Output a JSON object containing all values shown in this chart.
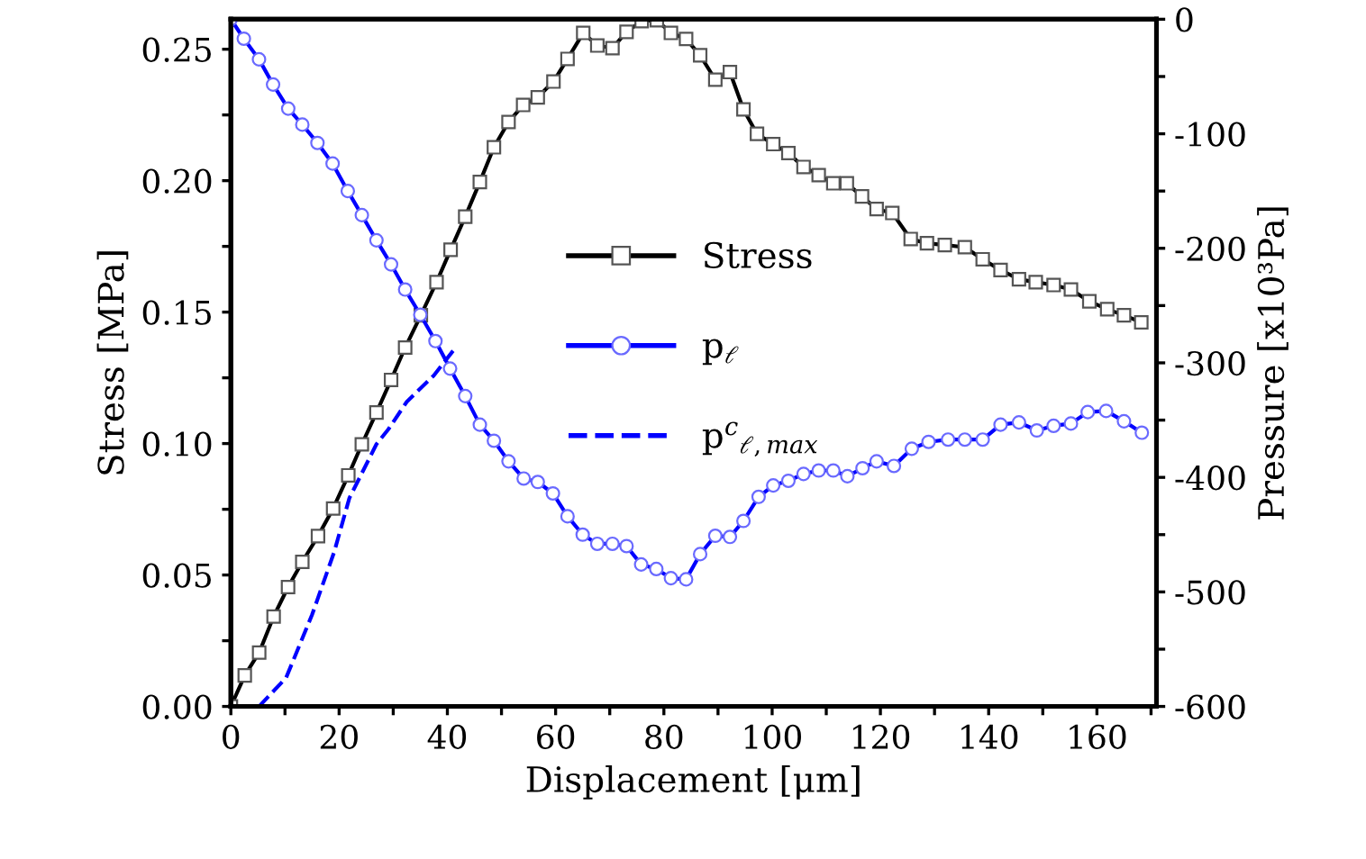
{
  "chart_data": {
    "type": "line",
    "xlabel": "Displacement [μm]",
    "ylabel": "Stress [MPa]",
    "y2label": "Pressure [x10³Pa]",
    "xlim": [
      0,
      171
    ],
    "ylim": [
      0,
      0.2614
    ],
    "y2lim": [
      -600,
      0
    ],
    "xticks": [
      0,
      {
        "value": 10,
        "label": null
      },
      20,
      {
        "value": 30,
        "label": null
      },
      40,
      {
        "value": 50,
        "label": null
      },
      60,
      {
        "value": 70,
        "label": null
      },
      80,
      {
        "value": 90,
        "label": null
      },
      100,
      {
        "value": 110,
        "label": null
      },
      120,
      {
        "value": 130,
        "label": null
      },
      140,
      {
        "value": 150,
        "label": null
      },
      160,
      {
        "value": 170,
        "label": null
      }
    ],
    "yticks": [
      {
        "value": 0,
        "label": "0.00"
      },
      {
        "value": 0.025,
        "label": null
      },
      {
        "value": 0.05,
        "label": "0.05"
      },
      {
        "value": 0.075,
        "label": null
      },
      {
        "value": 0.1,
        "label": "0.10"
      },
      {
        "value": 0.125,
        "label": null
      },
      {
        "value": 0.15,
        "label": "0.15"
      },
      {
        "value": 0.175,
        "label": null
      },
      {
        "value": 0.2,
        "label": "0.20"
      },
      {
        "value": 0.225,
        "label": null
      },
      {
        "value": 0.25,
        "label": "0.25"
      }
    ],
    "y2ticks": [
      -600,
      {
        "value": -550,
        "label": null
      },
      -500,
      {
        "value": -450,
        "label": null
      },
      -400,
      {
        "value": -350,
        "label": null
      },
      -300,
      {
        "value": -250,
        "label": null
      },
      -200,
      {
        "value": -150,
        "label": null
      },
      -100,
      {
        "value": -50,
        "label": null
      },
      0
    ],
    "grid": false,
    "legend": "center",
    "series": [
      {
        "name": "Stress",
        "color": "#000000",
        "marker": "square",
        "line_style": "solid",
        "x": [
          0,
          2.57,
          5.23,
          7.9,
          10.57,
          13.2,
          16.1,
          18.9,
          21.7,
          24.2,
          26.9,
          29.6,
          32.2,
          35.1,
          38,
          40.6,
          43.3,
          46,
          48.6,
          51.3,
          54,
          56.7,
          59.6,
          62.2,
          65.1,
          67.7,
          70.5,
          73.1,
          75.9,
          78.7,
          81.3,
          84.1,
          86.7,
          89.5,
          92.2,
          94.7,
          97.2,
          100.2,
          103,
          105.8,
          108.6,
          111.3,
          113.8,
          116.6,
          119.3,
          122.2,
          125.6,
          128.6,
          131.9,
          135.6,
          138.9,
          142.2,
          145.6,
          148.7,
          152,
          155.2,
          158.6,
          161.9,
          165,
          168.2
        ],
        "values": [
          0,
          0.0118,
          0.0205,
          0.0342,
          0.0454,
          0.055,
          0.0648,
          0.0753,
          0.0879,
          0.0997,
          0.1118,
          0.1242,
          0.1365,
          0.1488,
          0.1614,
          0.1737,
          0.1863,
          0.1995,
          0.2127,
          0.2223,
          0.2288,
          0.2317,
          0.2377,
          0.2463,
          0.2562,
          0.2514,
          0.2504,
          0.2566,
          0.2607,
          0.261,
          0.2562,
          0.2539,
          0.2477,
          0.2384,
          0.2413,
          0.2271,
          0.2178,
          0.2139,
          0.2105,
          0.2052,
          0.2021,
          0.199,
          0.199,
          0.194,
          0.1892,
          0.1877,
          0.1778,
          0.1762,
          0.1755,
          0.1747,
          0.1701,
          0.166,
          0.1625,
          0.1614,
          0.1603,
          0.1586,
          0.1541,
          0.1511,
          0.1488,
          0.1461
        ]
      },
      {
        "name": "p$_{ℓ}$",
        "color": "#0000ff",
        "marker": "circle",
        "line_style": "solid",
        "axis": "y2",
        "x": [
          0,
          2.4,
          5.2,
          7.8,
          10.6,
          13.2,
          16,
          18.8,
          21.6,
          24.2,
          26.9,
          29.6,
          32.2,
          35,
          37.8,
          40.5,
          43.3,
          46,
          48.6,
          51.3,
          54.1,
          56.7,
          59.5,
          62.2,
          65,
          67.7,
          70.5,
          73.1,
          75.8,
          78.6,
          81.3,
          84.1,
          86.7,
          89.5,
          92.2,
          94.7,
          97.5,
          100.2,
          103,
          105.8,
          108.6,
          111.3,
          113.9,
          116.7,
          119.3,
          122.5,
          125.8,
          128.9,
          132.5,
          135.6,
          138.9,
          142.2,
          145.6,
          148.9,
          152,
          155.2,
          158.3,
          161.7,
          165,
          168.3
        ],
        "values": [
          0,
          -17,
          -35,
          -57,
          -78,
          -92,
          -108,
          -126,
          -150,
          -171,
          -193,
          -214,
          -236,
          -258,
          -281,
          -305,
          -329,
          -354,
          -368,
          -386,
          -401,
          -404,
          -414,
          -434,
          -450,
          -458,
          -458,
          -460,
          -476,
          -480,
          -488,
          -489,
          -467,
          -451,
          -452,
          -438,
          -417,
          -407,
          -403,
          -397,
          -394,
          -394,
          -399,
          -392,
          -386,
          -390,
          -375,
          -369,
          -367,
          -367,
          -367,
          -354,
          -352,
          -359,
          -355,
          -353,
          -343,
          -342,
          -351,
          -361
        ]
      },
      {
        "name": "p$^{c}$$_{ℓ,max}$",
        "color": "#0000ff",
        "marker": "none",
        "line_style": "dashed",
        "axis": "y2",
        "x": [
          5.2,
          10.2,
          15,
          19.1,
          21.9,
          26.9,
          29.1,
          32.5,
          37.5,
          41.3
        ],
        "values": [
          -600,
          -575,
          -520,
          -465,
          -418,
          -371,
          -358,
          -334,
          -311,
          -288
        ]
      }
    ]
  }
}
